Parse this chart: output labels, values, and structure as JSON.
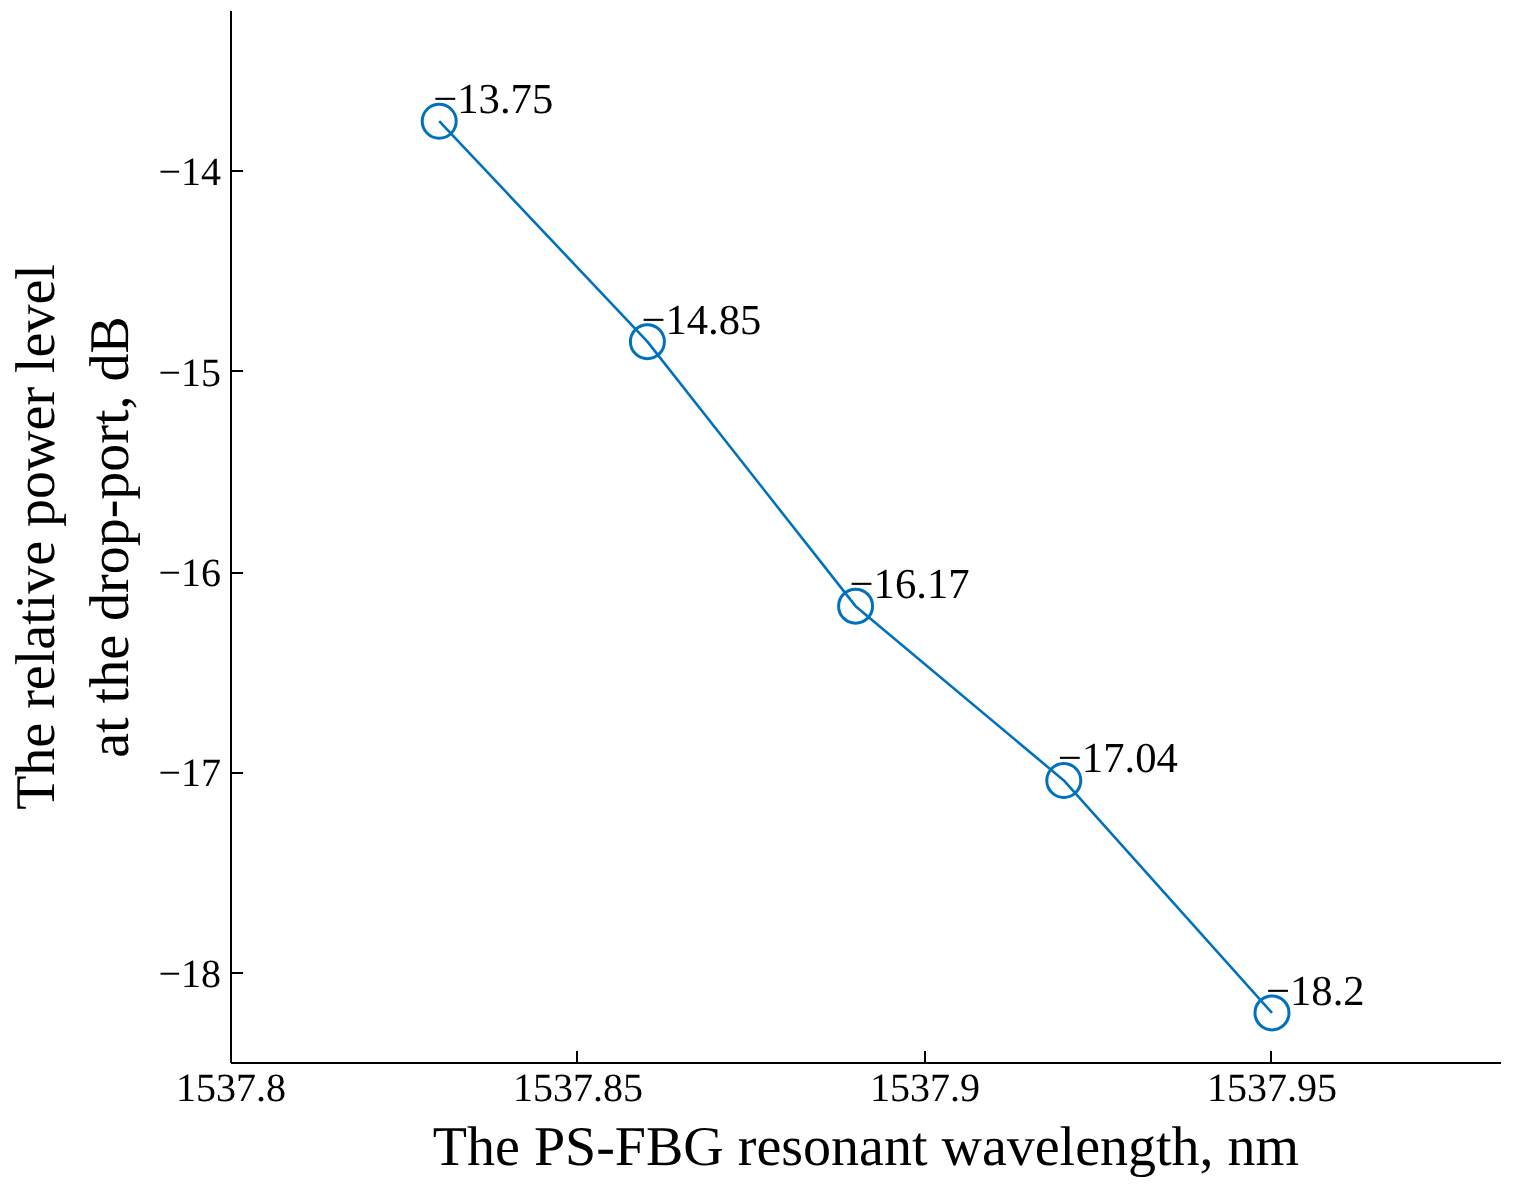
{
  "chart_data": {
    "type": "line",
    "xlabel": "The PS-FBG resonant wavelength, nm",
    "ylabel": "The relative power level\nat the drop-port, dB",
    "x": [
      1537.83,
      1537.86,
      1537.89,
      1537.92,
      1537.95
    ],
    "series": [
      {
        "color": "#0072bd",
        "values": [
          -13.75,
          -14.85,
          -16.17,
          -17.04,
          -18.2
        ]
      }
    ],
    "xlim": [
      1537.8,
      1537.983
    ],
    "xticks": [
      1537.8,
      1537.85,
      1537.9,
      1537.95
    ],
    "ylim": [
      -18.45,
      -13.2
    ],
    "yticks": [
      {
        "value": -18,
        "label": "−18"
      },
      {
        "value": -17,
        "label": "−17"
      },
      {
        "value": -16,
        "label": "−16"
      },
      {
        "value": -15,
        "label": "−15"
      },
      {
        "value": -14,
        "label": "−14"
      }
    ],
    "marker": "circle",
    "line_style": "solid",
    "grid": false,
    "data_labels": true
  }
}
